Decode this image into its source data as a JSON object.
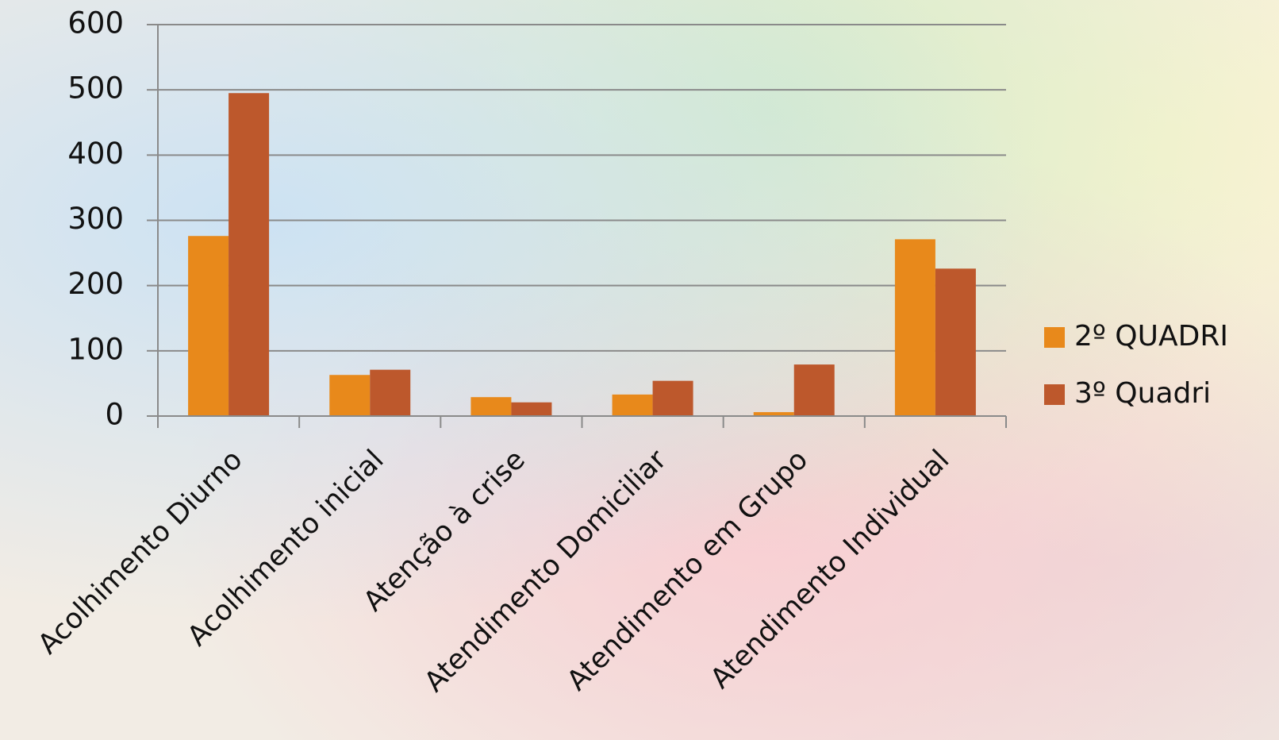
{
  "chart_data": {
    "type": "bar",
    "categories": [
      "Acolhimento Diurno",
      "Acolhimento inicial",
      "Atenção à crise",
      "Atendimento Domiciliar",
      "Atendimento em Grupo",
      "Atendimento Individual"
    ],
    "series": [
      {
        "name": "2º QUADRI",
        "color": "#e8891b",
        "values": [
          276,
          63,
          29,
          33,
          6,
          271
        ]
      },
      {
        "name": "3º Quadri",
        "color": "#bd582c",
        "values": [
          495,
          71,
          21,
          54,
          79,
          226
        ]
      }
    ],
    "ylim": [
      0,
      600
    ],
    "yticks": [
      0,
      100,
      200,
      300,
      400,
      500,
      600
    ],
    "grid": true,
    "legend": "right"
  }
}
